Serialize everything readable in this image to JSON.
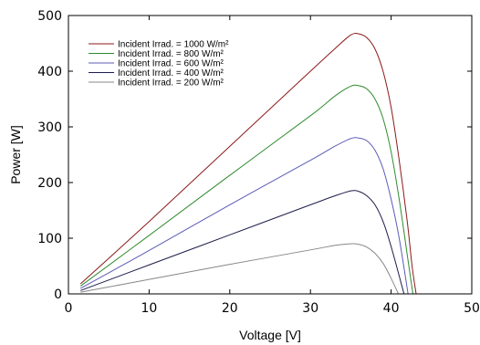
{
  "chart_data": {
    "type": "line",
    "xlabel": "Voltage [V]",
    "ylabel": "Power  [W]",
    "xlim": [
      0,
      50
    ],
    "ylim": [
      0,
      500
    ],
    "xticks": [
      "0",
      "10",
      "20",
      "30",
      "40",
      "50"
    ],
    "yticks": [
      "0",
      "100",
      "200",
      "300",
      "400",
      "500"
    ],
    "grid": false,
    "legend_position": "top-left",
    "series": [
      {
        "name": "Incident Irrad. = 1000 W/m²",
        "color": "#8b1a1a",
        "x": [
          1.5,
          10,
          20,
          30,
          33,
          35,
          36,
          37,
          38,
          39,
          40,
          41,
          42,
          42.6,
          43.1
        ],
        "y": [
          18,
          130,
          265,
          400,
          440,
          465,
          467,
          460,
          440,
          400,
          335,
          240,
          130,
          50,
          0
        ]
      },
      {
        "name": "Incident Irrad. = 800 W/m²",
        "color": "#2e8b2e",
        "x": [
          1.5,
          10,
          20,
          30,
          33,
          35,
          36,
          37,
          38,
          39,
          40,
          41,
          42,
          42.7
        ],
        "y": [
          14,
          105,
          213,
          320,
          355,
          373,
          374,
          368,
          350,
          315,
          255,
          170,
          70,
          0
        ]
      },
      {
        "name": "Incident Irrad. = 600 W/m²",
        "color": "#5b5bb8",
        "x": [
          1.5,
          10,
          20,
          30,
          33,
          35,
          36,
          37,
          38,
          39,
          40,
          41,
          42.1
        ],
        "y": [
          10,
          78,
          160,
          240,
          265,
          279,
          280,
          275,
          258,
          225,
          170,
          100,
          0
        ]
      },
      {
        "name": "Incident Irrad. = 400 W/m²",
        "color": "#1c1c4a",
        "x": [
          1.5,
          10,
          20,
          30,
          33,
          35,
          36,
          37,
          38,
          39,
          40,
          41.6
        ],
        "y": [
          6,
          52,
          106,
          160,
          176,
          185,
          184,
          176,
          160,
          130,
          85,
          0
        ]
      },
      {
        "name": "Incident Irrad. = 200 W/m²",
        "color": "#888888",
        "x": [
          1.5,
          10,
          20,
          30,
          33,
          35,
          36,
          37,
          38,
          39,
          40,
          40.9
        ],
        "y": [
          3,
          26,
          53,
          79,
          87,
          90,
          89,
          84,
          73,
          55,
          28,
          0
        ]
      }
    ]
  }
}
